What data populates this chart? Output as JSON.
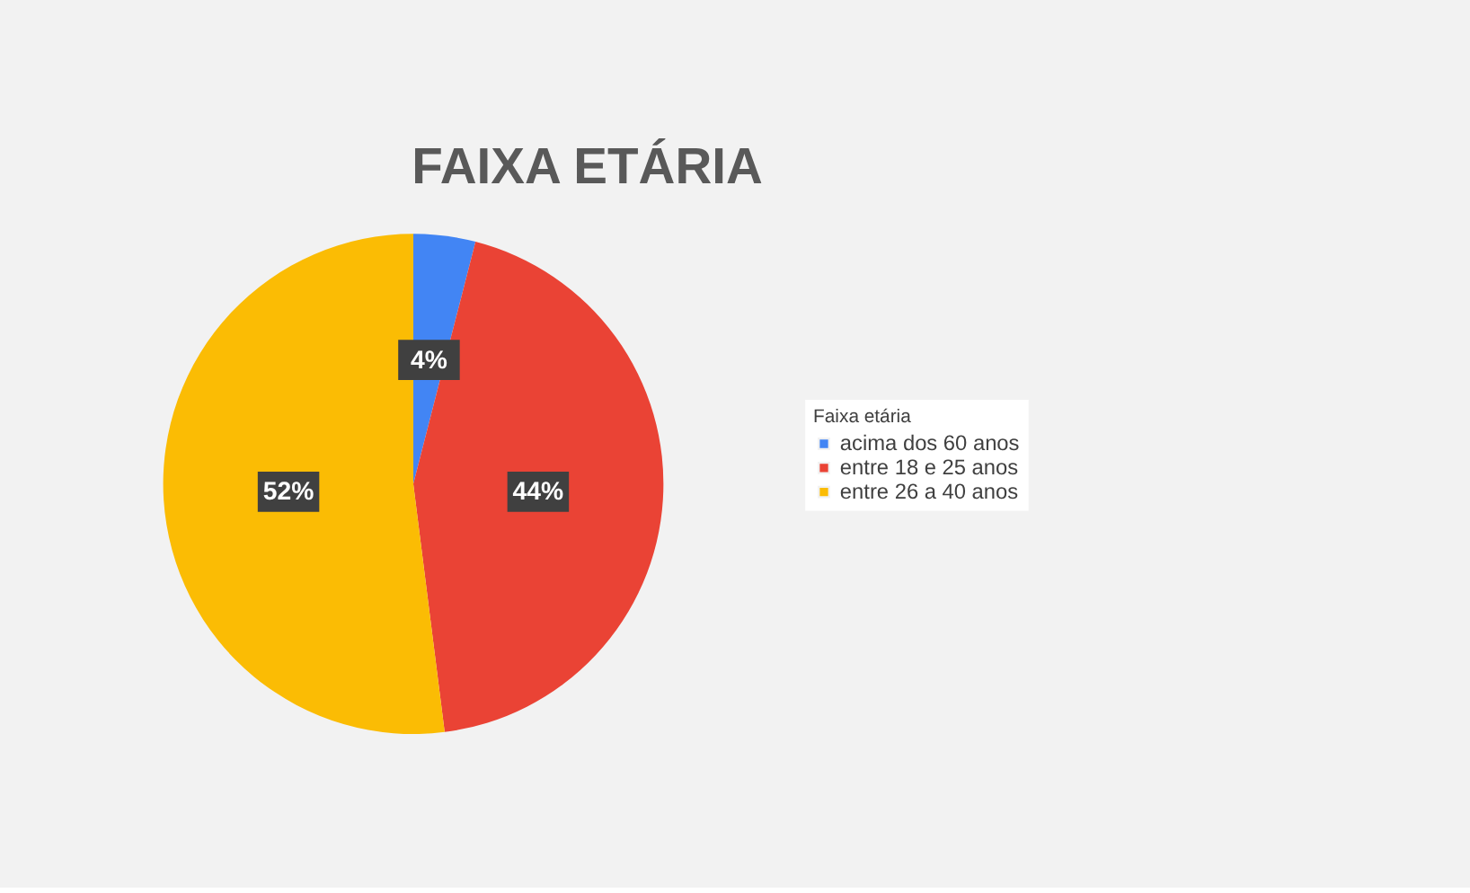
{
  "chart_data": {
    "type": "pie",
    "title": "FAIXA ETÁRIA",
    "legend_title": "Faixa etária",
    "categories": [
      "acima dos 60 anos",
      "entre 18 e 25 anos",
      "entre 26 a 40 anos"
    ],
    "values": [
      4,
      44,
      52
    ],
    "colors": [
      "#4285f4",
      "#ea4335",
      "#fbbc04"
    ],
    "value_labels": [
      "4%",
      "44%",
      "52%"
    ],
    "legend": "right"
  }
}
